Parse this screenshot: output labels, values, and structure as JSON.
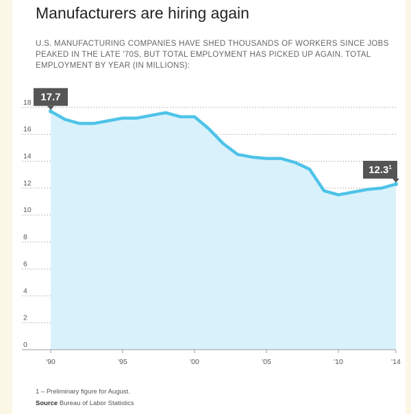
{
  "title": "Manufacturers are hiring again",
  "subtitle": "U.S. MANUFACTURING COMPANIES HAVE SHED THOUSANDS OF WORKERS SINCE JOBS PEAKED IN THE LATE '70S, BUT TOTAL EMPLOYMENT HAS PICKED UP AGAIN. TOTAL EMPLOYMENT BY YEAR (IN MILLIONS):",
  "footnote": "1 – Preliminary figure for August.",
  "source_label": "Source",
  "source_text": "Bureau of Labor Statistics",
  "colors": {
    "line": "#4ec3e8",
    "area": "#d9f1fb",
    "callout": "#555555",
    "background": "#fbf7e6"
  },
  "chart_data": {
    "type": "area",
    "x": [
      1990,
      1991,
      1992,
      1993,
      1994,
      1995,
      1996,
      1997,
      1998,
      1999,
      2000,
      2001,
      2002,
      2003,
      2004,
      2005,
      2006,
      2007,
      2008,
      2009,
      2010,
      2011,
      2012,
      2013,
      2014
    ],
    "values": [
      17.7,
      17.1,
      16.8,
      16.8,
      17.0,
      17.2,
      17.2,
      17.4,
      17.6,
      17.3,
      17.3,
      16.4,
      15.3,
      14.5,
      14.3,
      14.2,
      14.2,
      13.9,
      13.4,
      11.8,
      11.5,
      11.7,
      11.9,
      12.0,
      12.3
    ],
    "xticks": [
      "'90",
      "'95",
      "'00",
      "'05",
      "'10",
      "'14"
    ],
    "xtick_values": [
      1990,
      1995,
      2000,
      2005,
      2010,
      2014
    ],
    "yticks": [
      0,
      2,
      4,
      6,
      8,
      10,
      12,
      14,
      16,
      18
    ],
    "ylim": [
      0,
      18.5
    ],
    "grid": true,
    "callouts": [
      {
        "x": 1990,
        "value": 17.7,
        "label": "17.7",
        "sup": ""
      },
      {
        "x": 2014,
        "value": 12.3,
        "label": "12.3",
        "sup": "1"
      }
    ]
  }
}
